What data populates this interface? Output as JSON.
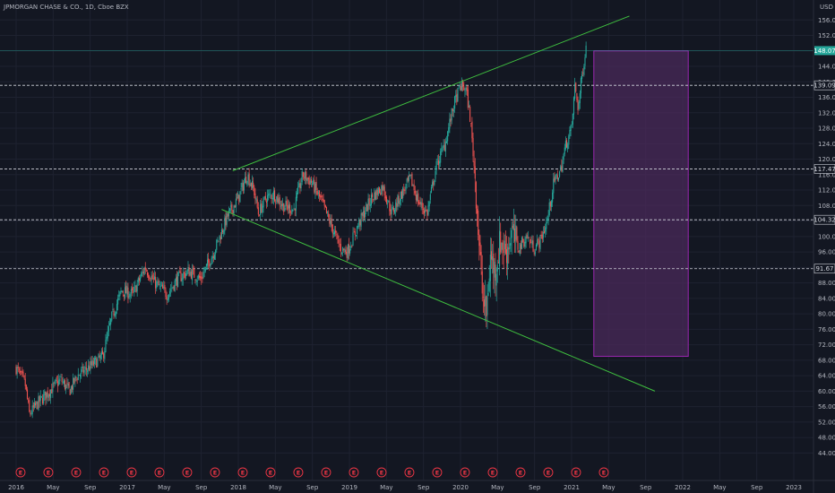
{
  "header": {
    "title": "JPMORGAN CHASE & CO., 1D, Cboe BZX",
    "currency": "USD"
  },
  "colors": {
    "background": "#131722",
    "grid": "#1e2230",
    "axis_text": "#b2b5be",
    "trendline": "#3fbf3f",
    "dashed_line": "#d1d4dc",
    "candle_up": "#26a69a",
    "candle_down": "#ef5350",
    "last_price_badge": "#26a69a",
    "box_fill": "#4a2a5a",
    "box_border": "#9c27b0",
    "event_marker": "#f23645"
  },
  "chart_data": {
    "type": "candlestick",
    "title": "JPMORGAN CHASE & CO., 1D, Cboe BZX",
    "x_ticks": [
      "2016",
      "May",
      "Sep",
      "2017",
      "May",
      "Sep",
      "2018",
      "May",
      "Sep",
      "2019",
      "May",
      "Sep",
      "2020",
      "May",
      "Sep",
      "2021",
      "May",
      "Sep",
      "2022",
      "May",
      "Sep",
      "2023"
    ],
    "x_range": [
      "2016-01",
      "2023-01"
    ],
    "y_ticks": [
      44,
      48,
      52,
      56,
      60,
      64,
      68,
      72,
      76,
      80,
      84,
      88,
      92,
      96,
      100,
      104,
      108,
      112,
      116,
      120,
      124,
      128,
      132,
      136,
      140,
      144,
      148,
      152,
      156
    ],
    "y_range": [
      42,
      160
    ],
    "price_path": [
      [
        2016.0,
        66
      ],
      [
        2016.08,
        62
      ],
      [
        2016.12,
        54
      ],
      [
        2016.2,
        57
      ],
      [
        2016.3,
        60
      ],
      [
        2016.4,
        63
      ],
      [
        2016.48,
        60
      ],
      [
        2016.55,
        64
      ],
      [
        2016.65,
        66
      ],
      [
        2016.78,
        69
      ],
      [
        2016.86,
        79
      ],
      [
        2016.95,
        86
      ],
      [
        2017.05,
        85
      ],
      [
        2017.16,
        92
      ],
      [
        2017.25,
        88
      ],
      [
        2017.36,
        85
      ],
      [
        2017.45,
        89
      ],
      [
        2017.55,
        91
      ],
      [
        2017.66,
        89
      ],
      [
        2017.78,
        96
      ],
      [
        2017.9,
        105
      ],
      [
        2018.0,
        110
      ],
      [
        2018.08,
        116
      ],
      [
        2018.14,
        112
      ],
      [
        2018.18,
        106
      ],
      [
        2018.25,
        110
      ],
      [
        2018.32,
        111
      ],
      [
        2018.4,
        108
      ],
      [
        2018.5,
        107
      ],
      [
        2018.58,
        116
      ],
      [
        2018.66,
        114
      ],
      [
        2018.75,
        109
      ],
      [
        2018.82,
        104
      ],
      [
        2018.92,
        97
      ],
      [
        2018.98,
        96
      ],
      [
        2019.08,
        103
      ],
      [
        2019.2,
        110
      ],
      [
        2019.3,
        113
      ],
      [
        2019.38,
        106
      ],
      [
        2019.45,
        110
      ],
      [
        2019.55,
        115
      ],
      [
        2019.62,
        109
      ],
      [
        2019.7,
        106
      ],
      [
        2019.78,
        118
      ],
      [
        2019.86,
        124
      ],
      [
        2019.94,
        134
      ],
      [
        2020.0,
        139
      ],
      [
        2020.05,
        138
      ],
      [
        2020.09,
        130
      ],
      [
        2020.14,
        112
      ],
      [
        2020.19,
        87
      ],
      [
        2020.23,
        79
      ],
      [
        2020.27,
        95
      ],
      [
        2020.31,
        91
      ],
      [
        2020.36,
        99
      ],
      [
        2020.41,
        96
      ],
      [
        2020.46,
        101
      ],
      [
        2020.52,
        97
      ],
      [
        2020.6,
        100
      ],
      [
        2020.66,
        97
      ],
      [
        2020.72,
        99
      ],
      [
        2020.78,
        104
      ],
      [
        2020.84,
        114
      ],
      [
        2020.9,
        117
      ],
      [
        2020.95,
        124
      ],
      [
        2021.0,
        128
      ],
      [
        2021.03,
        139
      ],
      [
        2021.06,
        133
      ],
      [
        2021.09,
        141
      ],
      [
        2021.13,
        149
      ]
    ],
    "horizontal_levels": [
      {
        "label": "139.09",
        "value": 139.09
      },
      {
        "label": "117.47",
        "value": 117.47
      },
      {
        "label": "104.32",
        "value": 104.32
      },
      {
        "label": "91.67",
        "value": 91.67
      }
    ],
    "last_price": {
      "label": "148.07",
      "value": 148.07
    },
    "trendlines": [
      {
        "from": [
          2017.95,
          117
        ],
        "to": [
          2021.52,
          157
        ]
      },
      {
        "from": [
          2017.85,
          107
        ],
        "to": [
          2021.75,
          60
        ]
      }
    ],
    "projection_box": {
      "x_start": 2021.2,
      "x_end": 2022.05,
      "y_low": 69,
      "y_high": 148
    },
    "event_markers": {
      "label": "E",
      "dates": [
        2016.04,
        2016.29,
        2016.54,
        2016.79,
        2017.04,
        2017.29,
        2017.54,
        2017.79,
        2018.04,
        2018.29,
        2018.54,
        2018.79,
        2019.04,
        2019.29,
        2019.54,
        2019.79,
        2020.04,
        2020.29,
        2020.54,
        2020.79,
        2021.04,
        2021.29
      ]
    }
  }
}
